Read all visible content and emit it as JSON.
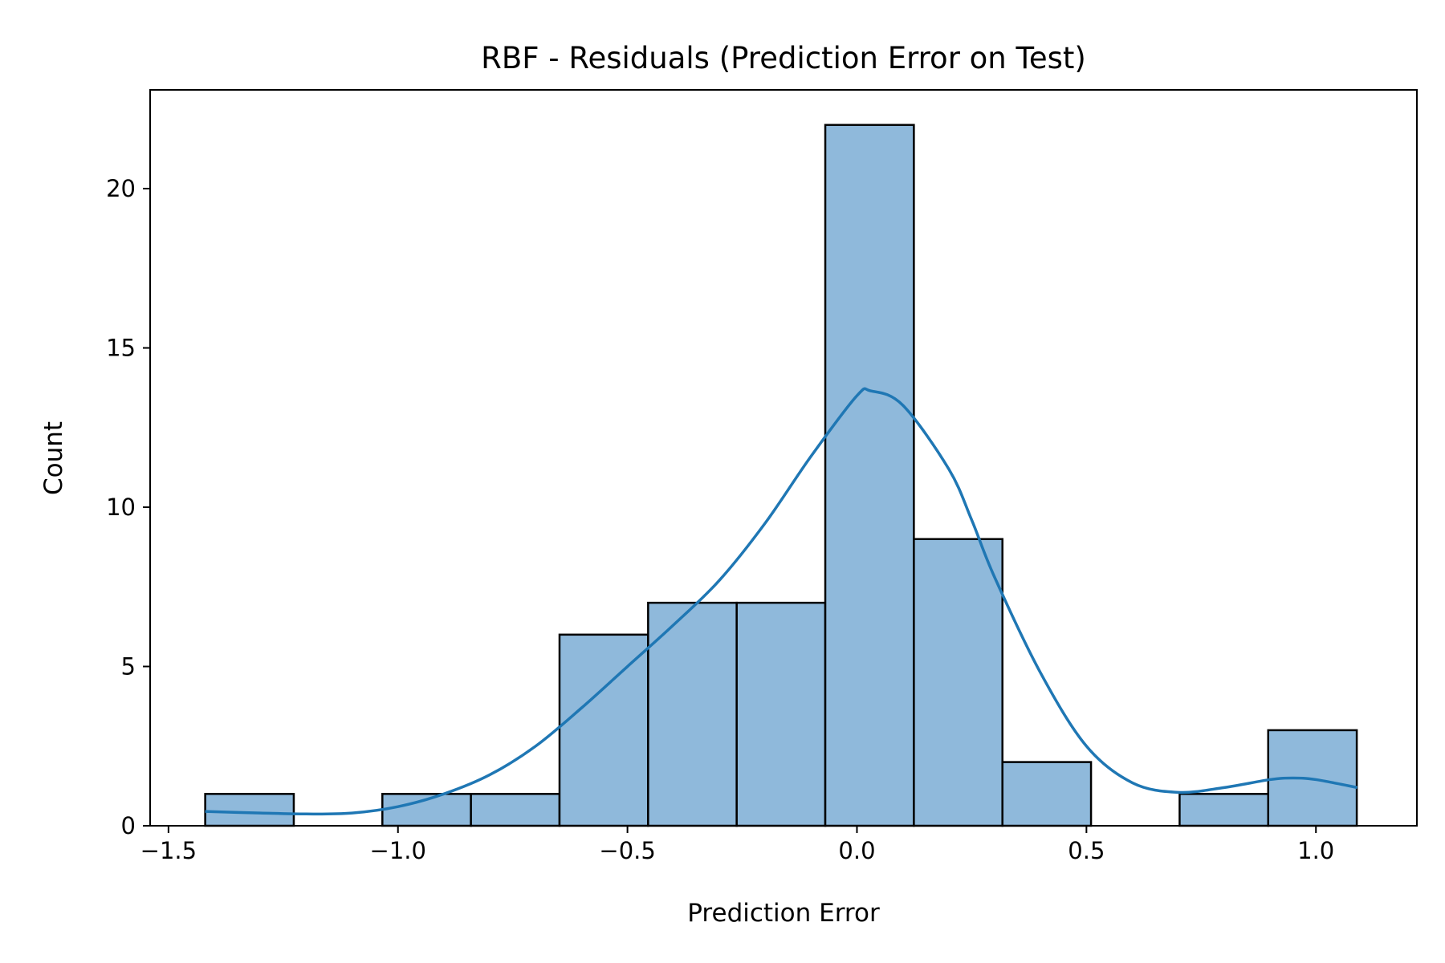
{
  "chart_data": {
    "type": "bar",
    "title": "RBF - Residuals (Prediction Error on Test)",
    "xlabel": "Prediction Error",
    "ylabel": "Count",
    "xlim": [
      -1.54,
      1.22
    ],
    "ylim": [
      0,
      23.1
    ],
    "x_ticks": [
      -1.5,
      -1.0,
      -0.5,
      0.0,
      0.5,
      1.0
    ],
    "x_tick_labels": [
      "−1.5",
      "−1.0",
      "−0.5",
      "0.0",
      "0.5",
      "1.0"
    ],
    "y_ticks": [
      0,
      5,
      10,
      15,
      20
    ],
    "y_tick_labels": [
      "0",
      "5",
      "10",
      "15",
      "20"
    ],
    "bins": [
      {
        "x0": -1.42,
        "x1": -1.227,
        "count": 1
      },
      {
        "x0": -1.227,
        "x1": -1.034,
        "count": 0
      },
      {
        "x0": -1.034,
        "x1": -0.841,
        "count": 1
      },
      {
        "x0": -0.841,
        "x1": -0.648,
        "count": 1
      },
      {
        "x0": -0.648,
        "x1": -0.455,
        "count": 6
      },
      {
        "x0": -0.455,
        "x1": -0.262,
        "count": 7
      },
      {
        "x0": -0.262,
        "x1": -0.069,
        "count": 7
      },
      {
        "x0": -0.069,
        "x1": 0.124,
        "count": 22
      },
      {
        "x0": 0.124,
        "x1": 0.317,
        "count": 9
      },
      {
        "x0": 0.317,
        "x1": 0.51,
        "count": 2
      },
      {
        "x0": 0.51,
        "x1": 0.703,
        "count": 0
      },
      {
        "x0": 0.703,
        "x1": 0.896,
        "count": 1
      },
      {
        "x0": 0.896,
        "x1": 1.089,
        "count": 3
      }
    ],
    "kde": {
      "x": [
        -1.42,
        -1.3,
        -1.2,
        -1.1,
        -1.0,
        -0.9,
        -0.8,
        -0.7,
        -0.6,
        -0.5,
        -0.4,
        -0.3,
        -0.2,
        -0.1,
        0.0,
        0.03,
        0.1,
        0.2,
        0.25,
        0.3,
        0.4,
        0.5,
        0.6,
        0.7,
        0.8,
        0.9,
        0.95,
        1.0,
        1.09
      ],
      "y": [
        0.45,
        0.4,
        0.37,
        0.4,
        0.6,
        1.0,
        1.6,
        2.5,
        3.7,
        5.0,
        6.3,
        7.7,
        9.5,
        11.6,
        13.5,
        13.65,
        13.2,
        11.2,
        9.6,
        7.8,
        4.8,
        2.5,
        1.35,
        1.05,
        1.2,
        1.45,
        1.5,
        1.45,
        1.2
      ]
    },
    "colors": {
      "bar_fill": "#8fb9db",
      "bar_edge": "#000000",
      "kde_line": "#1f77b4"
    },
    "grid": false,
    "legend": "none"
  }
}
